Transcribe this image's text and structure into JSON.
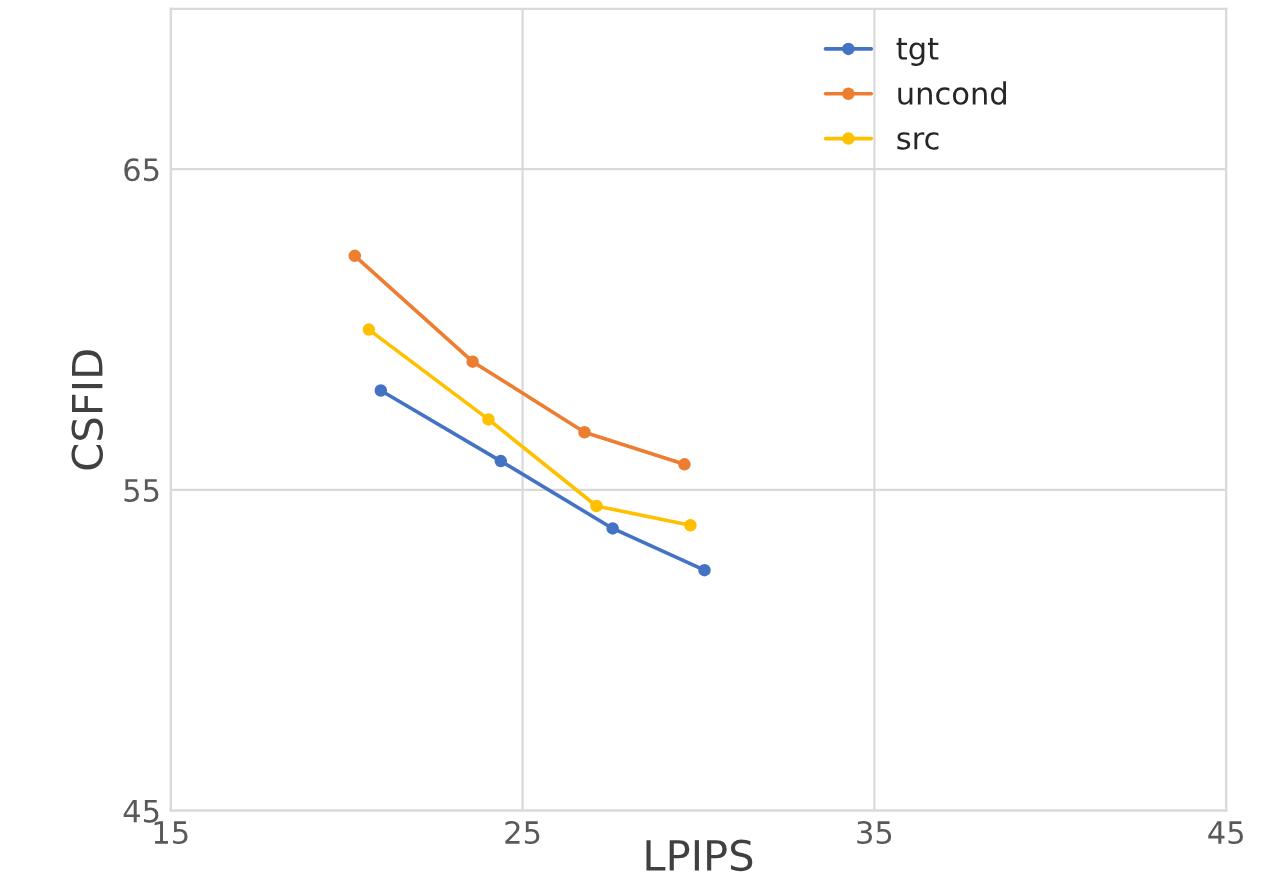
{
  "chart_data": {
    "type": "line",
    "xlabel": "LPIPS",
    "ylabel": "CSFID",
    "xlim": [
      15,
      45
    ],
    "xticks": [
      15,
      25,
      35,
      45
    ],
    "ylim": [
      45,
      70
    ],
    "yticks": [
      45,
      55,
      65
    ],
    "grid": true,
    "legend": "top right",
    "marker": "circle",
    "line_style": "solid",
    "series": [
      {
        "name": "tgt",
        "color": "#4472c4",
        "x": [
          20.97,
          24.38,
          27.56,
          30.17
        ],
        "values": [
          58.1,
          55.9,
          53.8,
          52.5
        ]
      },
      {
        "name": "uncond",
        "color": "#ed7d31",
        "x": [
          20.23,
          23.58,
          26.76,
          29.6
        ],
        "values": [
          62.3,
          59.0,
          56.8,
          55.8
        ]
      },
      {
        "name": "src",
        "color": "#ffc000",
        "x": [
          20.63,
          24.03,
          27.1,
          29.77
        ],
        "values": [
          60.0,
          57.2,
          54.5,
          53.9
        ]
      }
    ]
  }
}
